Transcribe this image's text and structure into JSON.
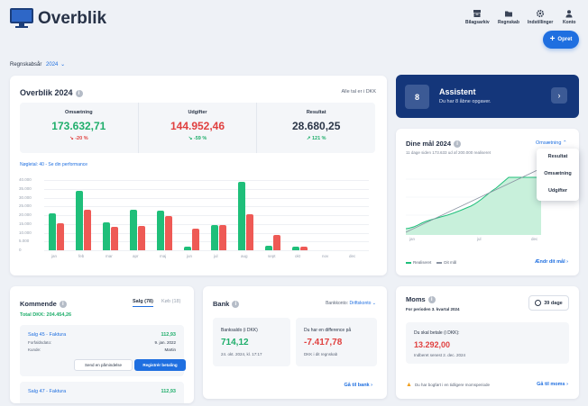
{
  "header": {
    "title": "Overblik",
    "nav": [
      {
        "label": "Bilagsarkiv",
        "icon": "archive-icon"
      },
      {
        "label": "Regnskab",
        "icon": "folder-icon"
      },
      {
        "label": "Indstillinger",
        "icon": "gear-icon"
      },
      {
        "label": "Konto",
        "icon": "user-icon"
      }
    ],
    "create_label": "Opret"
  },
  "fiscal": {
    "label": "Regnskabsår",
    "year": "2024"
  },
  "overview": {
    "title": "Overblik 2024",
    "note": "Alle tal er i DKK",
    "stats": [
      {
        "label": "Omsætning",
        "value": "173.632,71",
        "change": "↘ -20 %",
        "tone": "green",
        "chg_tone": "red"
      },
      {
        "label": "Udgifter",
        "value": "144.952,46",
        "change": "↘ -59 %",
        "tone": "red",
        "chg_tone": "green"
      },
      {
        "label": "Resultat",
        "value": "28.680,25",
        "change": "↗ 121 %",
        "tone": "dark",
        "chg_tone": "green"
      }
    ],
    "kpi_label": "Nøgletal:",
    "kpi_link": "40 - Se din performance"
  },
  "chart_data": {
    "type": "bar",
    "categories": [
      "jan",
      "feb",
      "mar",
      "apr",
      "maj",
      "jun",
      "jul",
      "aug",
      "sept",
      "okt",
      "nov",
      "dec"
    ],
    "y_ticks": [
      "40.000",
      "35.000",
      "30.000",
      "25.000",
      "20.000",
      "15.000",
      "10.000",
      "5.000",
      "0"
    ],
    "ylim": [
      0,
      40000
    ],
    "series": [
      {
        "color": "#1fbf7a",
        "values": [
          21000,
          34000,
          16000,
          23000,
          22500,
          2000,
          14500,
          39000,
          2500,
          2000,
          0,
          0
        ]
      },
      {
        "color": "#ee5a55",
        "values": [
          15500,
          23000,
          13500,
          14000,
          19500,
          12500,
          14500,
          20500,
          8500,
          2000,
          0,
          0
        ]
      }
    ]
  },
  "assistant": {
    "count": "8",
    "title": "Assistent",
    "subtitle": "Du har 8 åbne opgaver."
  },
  "goals": {
    "title": "Dine mål 2024",
    "selector": "Omsætning",
    "summary": "11 dage siden 173.633 ud af 200.000 realiseret",
    "x_labels": [
      "jan",
      "jul",
      "dec"
    ],
    "legend": [
      "Realiseret",
      "Dit mål"
    ],
    "change_link": "Ændr dit mål",
    "dropdown": [
      "Resultat",
      "Omsætning",
      "Udgifter"
    ]
  },
  "kommende": {
    "title": "Kommende",
    "tabs": [
      "Salg (78)",
      "Køb (18)"
    ],
    "total": "Total DKK: 204.454,26",
    "item1": {
      "title": "Salg 45 - Faktura",
      "amount": "112,93",
      "rows": [
        {
          "k": "Forfaldsdato:",
          "v": "9. jan. 2022"
        },
        {
          "k": "Kunde:",
          "v": "Martin"
        }
      ],
      "btn_reminder": "Send en påmindelse",
      "btn_register": "Registrér betaling"
    },
    "item2": {
      "title": "Salg 47 - Faktura",
      "amount": "112,93"
    }
  },
  "bank": {
    "title": "Bank",
    "account_label": "Bankkonto:",
    "account": "Driftskonto",
    "balance_label": "Banksaldo (i DKK)",
    "balance": "714,12",
    "balance_date": "24. okt. 2024, kl. 17:17",
    "diff_label": "Du har en difference på",
    "diff": "-7.417,78",
    "diff_sub": "DKK i dit regnskab",
    "link": "Gå til bank"
  },
  "moms": {
    "title": "Moms",
    "period": "For perioden 3. kvartal 2024",
    "days": "39 dage",
    "pay_label": "Du skal betale (i DKK):",
    "amount": "13.292,00",
    "deadline": "Indberet senest 2. dec. 2024",
    "warning": "Du har bogført i en tidligere momsperiode",
    "link": "Gå til moms"
  }
}
